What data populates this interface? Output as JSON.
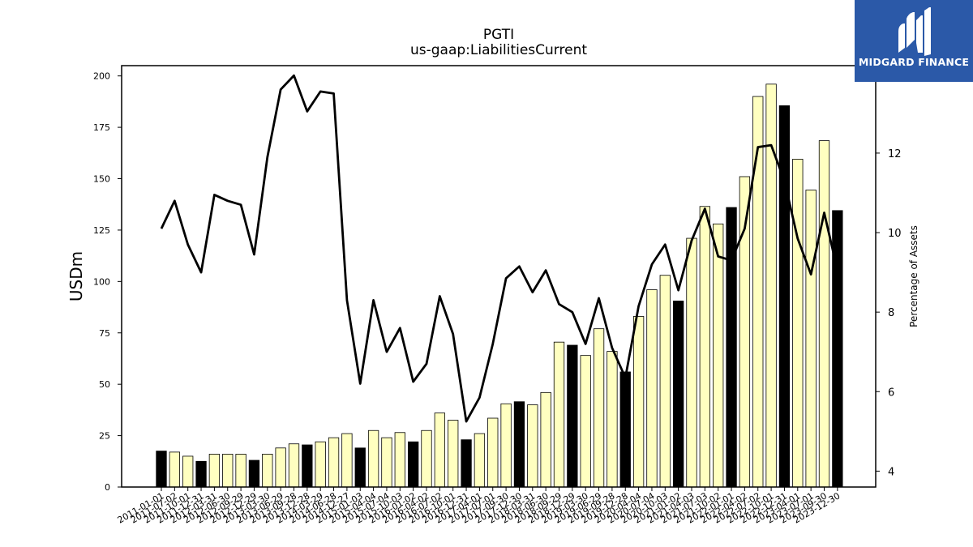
{
  "chart_data": {
    "type": "bar+line",
    "title": "PGTI",
    "subtitle": "us-gaap:LiabilitiesCurrent",
    "ylabel": "USDm",
    "y2label": "Percentage of Assets",
    "ylim": [
      0,
      205
    ],
    "y2lim": [
      3.6,
      14.2
    ],
    "yticks": [
      0,
      25,
      50,
      75,
      100,
      125,
      150,
      175,
      200
    ],
    "y2ticks": [
      4,
      6,
      8,
      10,
      12
    ],
    "x_tick_labels": [
      "2011-01-01",
      "2011-07-02",
      "2011-10-01",
      "2011-12-31",
      "2012-03-31",
      "2012-06-30",
      "2012-09-29",
      "2012-12-29",
      "2013-03-30",
      "2013-06-29",
      "2013-09-28",
      "2013-12-28",
      "2014-03-29",
      "2014-06-28",
      "2014-12-27",
      "2015-01-03",
      "2015-04-04",
      "2015-07-04",
      "2015-10-03",
      "2016-01-02",
      "2016-04-02",
      "2016-07-02",
      "2016-10-01",
      "2016-12-31",
      "2017-04-01",
      "2017-07-01",
      "2017-09-30",
      "2017-12-30",
      "2018-03-31",
      "2018-06-30",
      "2018-09-29",
      "2018-12-29",
      "2019-03-30",
      "2019-06-29",
      "2019-09-28",
      "2019-12-28",
      "2020-04-04",
      "2020-07-04",
      "2020-10-03",
      "2021-01-02",
      "2021-04-03",
      "2021-07-03",
      "2021-10-02",
      "2022-01-01",
      "2022-04-02",
      "2022-07-02",
      "2022-10-01",
      "2022-12-31",
      "2023-04-01",
      "2023-07-01",
      "2023-09-30",
      "2023-12-30"
    ],
    "bars": {
      "values": [
        17.5,
        17,
        15,
        12.5,
        16,
        16,
        16,
        13,
        16,
        19,
        21,
        20.5,
        22,
        24,
        26,
        19,
        27.5,
        24,
        26.5,
        22,
        27.5,
        36,
        32.5,
        23,
        26,
        33.5,
        40.5,
        41.5,
        40,
        46,
        70.5,
        69,
        64,
        77,
        66,
        56,
        83,
        96,
        103,
        90.5,
        121,
        136.5,
        128,
        136,
        151,
        190,
        196,
        185.5,
        159.5,
        144.5,
        168.5,
        134.5
      ],
      "highlighted": [
        true,
        false,
        false,
        true,
        false,
        false,
        false,
        true,
        false,
        false,
        false,
        true,
        false,
        false,
        false,
        true,
        false,
        false,
        false,
        true,
        false,
        false,
        false,
        true,
        false,
        false,
        false,
        true,
        false,
        false,
        false,
        true,
        false,
        false,
        false,
        true,
        false,
        false,
        false,
        true,
        false,
        false,
        false,
        true,
        false,
        false,
        false,
        true,
        false,
        false,
        false,
        true
      ],
      "fill": "#ffffc0",
      "highlight_fill": "#000000"
    },
    "line": {
      "values": [
        10.1,
        10.8,
        9.7,
        9.0,
        10.95,
        10.8,
        10.7,
        9.45,
        11.9,
        13.6,
        13.95,
        13.05,
        13.55,
        13.5,
        8.3,
        6.2,
        8.3,
        7.0,
        7.6,
        6.25,
        6.7,
        8.4,
        7.45,
        5.25,
        5.85,
        7.2,
        8.85,
        9.15,
        8.5,
        9.05,
        8.2,
        8.0,
        7.2,
        8.35,
        7.1,
        6.35,
        8.15,
        9.2,
        9.7,
        8.55,
        9.8,
        10.6,
        9.4,
        9.3,
        10.1,
        12.15,
        12.2,
        11.3,
        9.85,
        8.95,
        10.5,
        9.05
      ],
      "color": "#000000"
    },
    "grid": false,
    "legend": "none"
  },
  "logo": {
    "text": "MIDGARD FINANCE",
    "background": "#2b59a8",
    "icon": "midgard-logo-icon"
  }
}
